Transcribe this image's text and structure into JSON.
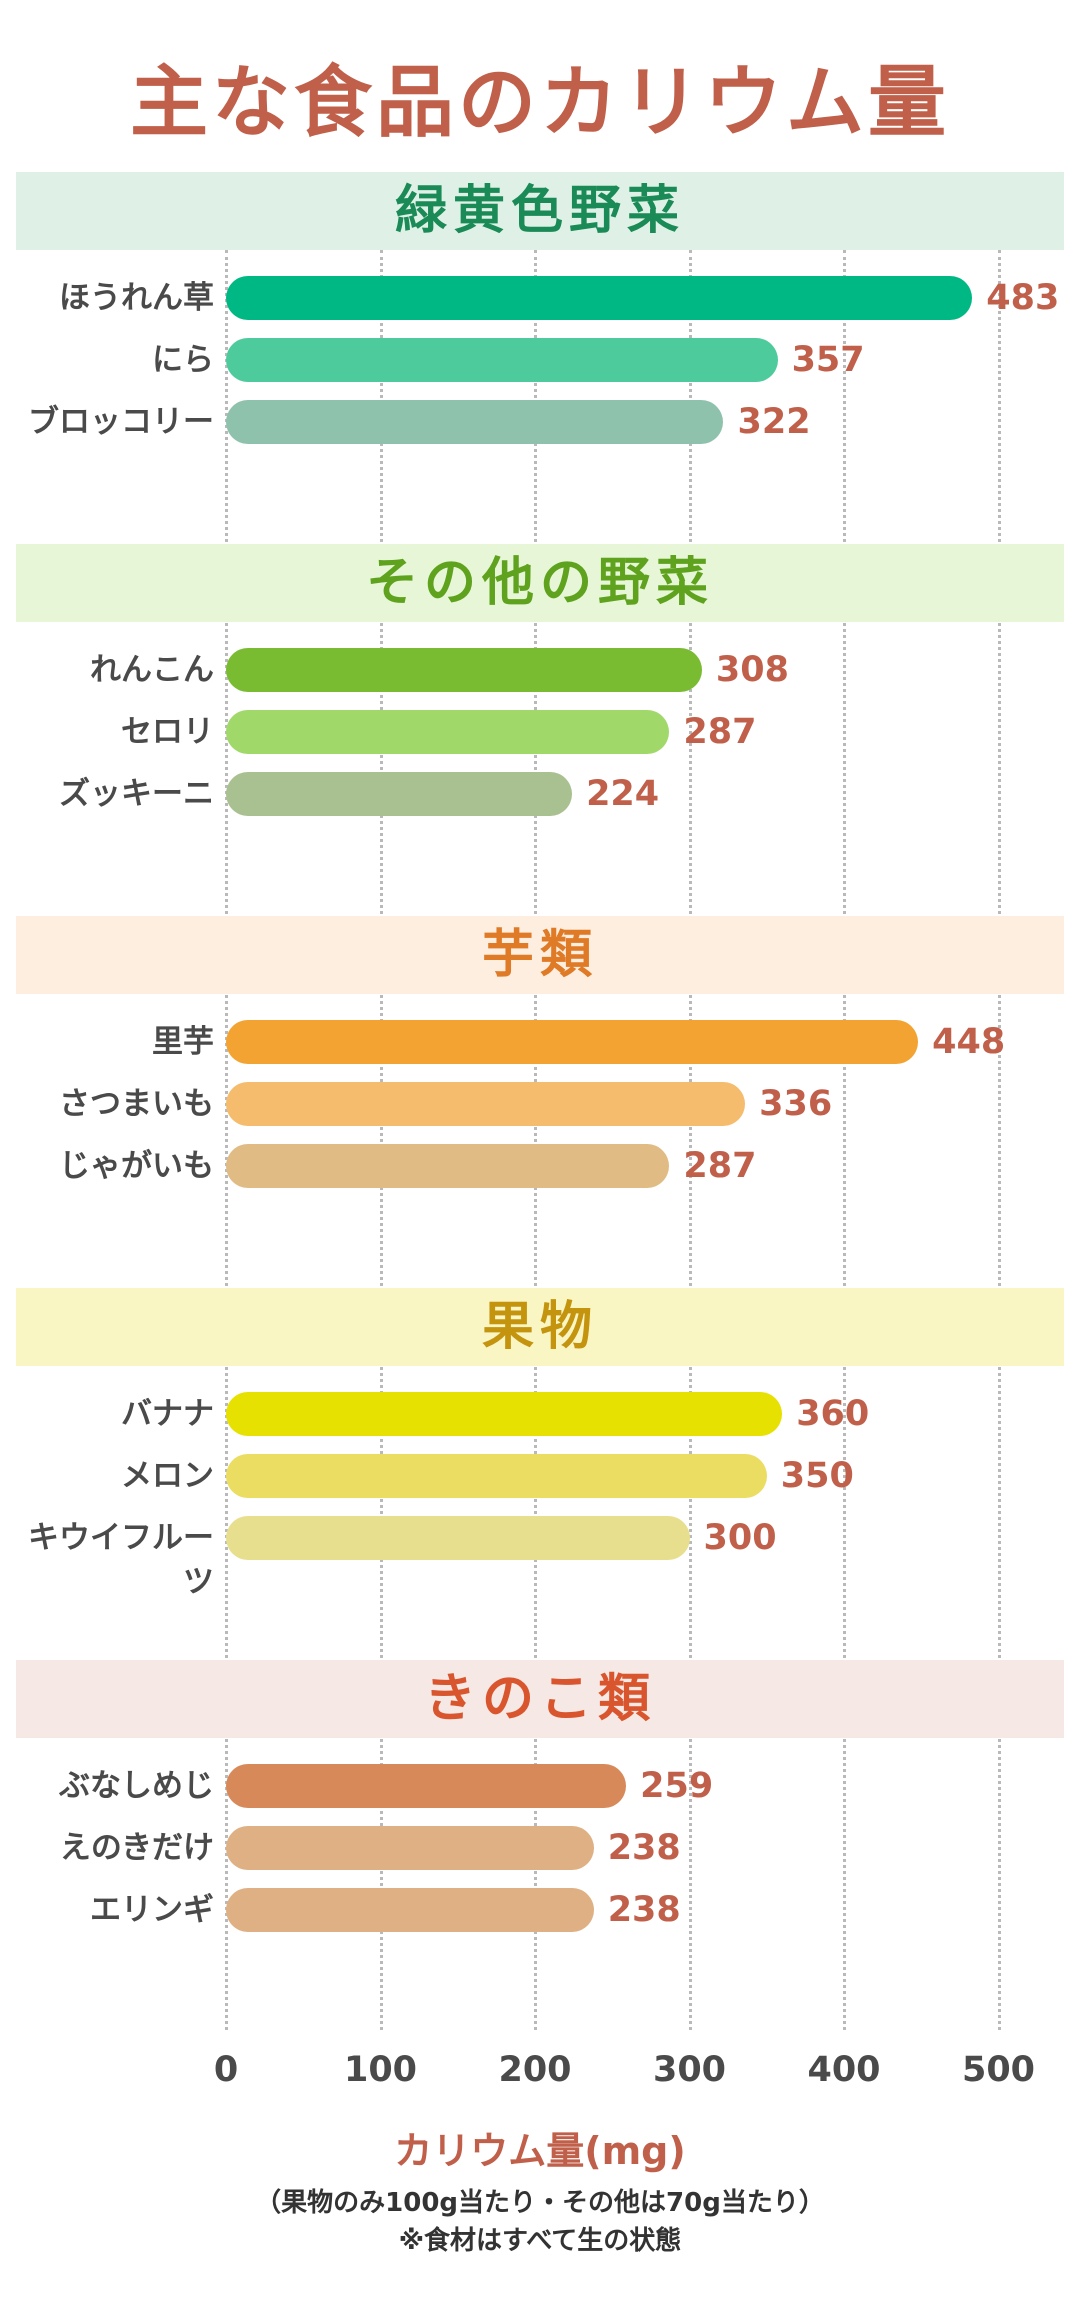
{
  "title": "主な食品のカリウム量",
  "chart_data": {
    "type": "bar",
    "orientation": "horizontal",
    "xlabel": "カリウム量(mg)",
    "xlim": [
      0,
      540
    ],
    "xticks": [
      0,
      100,
      200,
      300,
      400,
      500
    ],
    "grid": true,
    "note_lines": [
      "（果物のみ100g当たり・その他は70g当たり）",
      "※食材はすべて生の状態"
    ],
    "groups": [
      {
        "name": "緑黄色野菜",
        "color": "#1a8a56",
        "band_color": "#dff1e7",
        "items": [
          {
            "label": "ほうれん草",
            "value": 483,
            "color": "#00b883"
          },
          {
            "label": "にら",
            "value": 357,
            "color": "#4ecb9d"
          },
          {
            "label": "ブロッコリー",
            "value": 322,
            "color": "#8fc2ad"
          }
        ]
      },
      {
        "name": "その他の野菜",
        "color": "#5ea21e",
        "band_color": "#e6f6d6",
        "items": [
          {
            "label": "れんこん",
            "value": 308,
            "color": "#79bc32"
          },
          {
            "label": "セロリ",
            "value": 287,
            "color": "#a0d86a"
          },
          {
            "label": "ズッキーニ",
            "value": 224,
            "color": "#a9c090"
          }
        ]
      },
      {
        "name": "芋類",
        "color": "#df7a26",
        "band_color": "#fdeee0",
        "items": [
          {
            "label": "里芋",
            "value": 448,
            "color": "#f2a332"
          },
          {
            "label": "さつまいも",
            "value": 336,
            "color": "#f4bc6c"
          },
          {
            "label": "じゃがいも",
            "value": 287,
            "color": "#e0bb84"
          }
        ]
      },
      {
        "name": "果物",
        "color": "#c4940e",
        "band_color": "#f9f6c4",
        "items": [
          {
            "label": "バナナ",
            "value": 360,
            "color": "#e6e100"
          },
          {
            "label": "メロン",
            "value": 350,
            "color": "#ebdc62"
          },
          {
            "label": "キウイフルーツ",
            "value": 300,
            "color": "#e7df8d"
          }
        ]
      },
      {
        "name": "きのこ類",
        "color": "#d8552e",
        "band_color": "#f6e9e5",
        "items": [
          {
            "label": "ぶなしめじ",
            "value": 259,
            "color": "#d8895a"
          },
          {
            "label": "えのきだけ",
            "value": 238,
            "color": "#deb083"
          },
          {
            "label": "エリンギ",
            "value": 238,
            "color": "#deb083"
          }
        ]
      }
    ]
  }
}
